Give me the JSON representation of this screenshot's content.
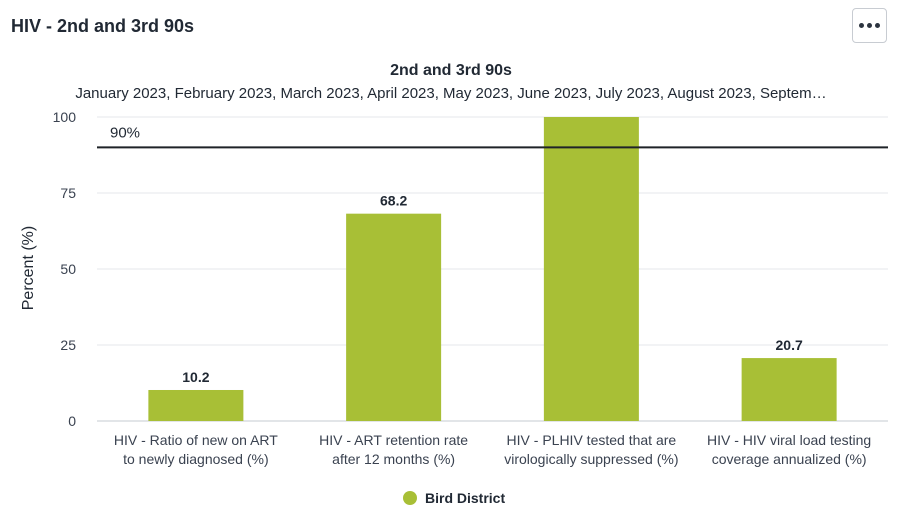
{
  "card": {
    "title": "HIV - 2nd and 3rd 90s",
    "menu_icon": "more-horizontal-icon"
  },
  "chart_data": {
    "type": "bar",
    "title": "2nd and 3rd 90s",
    "subtitle": "January 2023, February 2023, March 2023, April 2023, May 2023, June 2023, July 2023, August 2023, Septem…",
    "ylabel": "Percent (%)",
    "xlabel": "",
    "ylim": [
      0,
      100
    ],
    "yticks": [
      0,
      25,
      50,
      75,
      100
    ],
    "categories": [
      [
        "HIV - Ratio of new on ART",
        "to newly diagnosed (%)"
      ],
      [
        "HIV - ART retention rate",
        "after 12 months (%)"
      ],
      [
        "HIV - PLHIV tested that are",
        "virologically suppressed (%)"
      ],
      [
        "HIV - HIV viral load testing",
        "coverage annualized (%)"
      ]
    ],
    "series": [
      {
        "name": "Bird District",
        "color": "#a8bf36",
        "values": [
          10.2,
          68.2,
          100,
          20.7
        ],
        "labels": [
          "10.2",
          "68.2",
          "",
          "20.7"
        ]
      }
    ],
    "reference_line": {
      "value": 90,
      "label": "90%",
      "color": "#1f2328"
    },
    "grid": true,
    "legend_position": "bottom"
  }
}
